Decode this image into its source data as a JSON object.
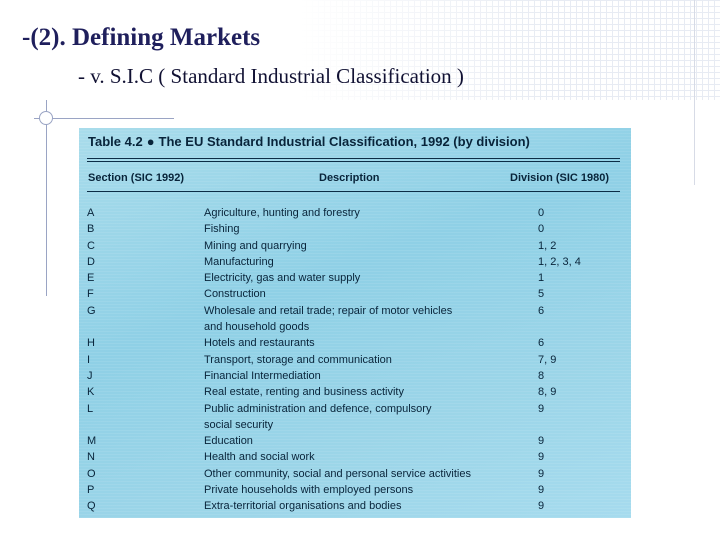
{
  "slide": {
    "heading": "-(2). Defining Markets",
    "subheading": "- v.   S.I.C  ( Standard Industrial Classification )"
  },
  "table": {
    "title_prefix": "Table 4.2",
    "bullet": "●",
    "title_text": "The EU Standard Industrial Classification, 1992 (by division)",
    "headers": {
      "section": "Section (SIC 1992)",
      "description": "Description",
      "division": "Division (SIC 1980)"
    },
    "rows": [
      {
        "code": "A",
        "desc": "Agriculture, hunting and forestry",
        "div": "0"
      },
      {
        "code": "B",
        "desc": "Fishing",
        "div": "0"
      },
      {
        "code": "C",
        "desc": "Mining and quarrying",
        "div": "1, 2"
      },
      {
        "code": "D",
        "desc": "Manufacturing",
        "div": "1, 2, 3, 4"
      },
      {
        "code": "E",
        "desc": "Electricity, gas and water supply",
        "div": "1"
      },
      {
        "code": "F",
        "desc": "Construction",
        "div": "5"
      },
      {
        "code": "G",
        "desc": "Wholesale and retail trade; repair of motor vehicles",
        "div": "6"
      },
      {
        "code": "",
        "desc": "and household goods",
        "div": ""
      },
      {
        "code": "H",
        "desc": "Hotels and restaurants",
        "div": "6"
      },
      {
        "code": "I",
        "desc": "Transport, storage and communication",
        "div": "7, 9"
      },
      {
        "code": "J",
        "desc": "Financial Intermediation",
        "div": "8"
      },
      {
        "code": "K",
        "desc": "Real estate, renting and business activity",
        "div": "8, 9"
      },
      {
        "code": "L",
        "desc": "Public administration and defence, compulsory",
        "div": "9"
      },
      {
        "code": "",
        "desc": "social security",
        "div": ""
      },
      {
        "code": "M",
        "desc": "Education",
        "div": "9"
      },
      {
        "code": "N",
        "desc": "Health and social work",
        "div": "9"
      },
      {
        "code": "O",
        "desc": "Other community, social and personal service activities",
        "div": "9"
      },
      {
        "code": "P",
        "desc": "Private households with employed persons",
        "div": "9"
      },
      {
        "code": "Q",
        "desc": "Extra-territorial organisations and bodies",
        "div": "9"
      }
    ]
  }
}
